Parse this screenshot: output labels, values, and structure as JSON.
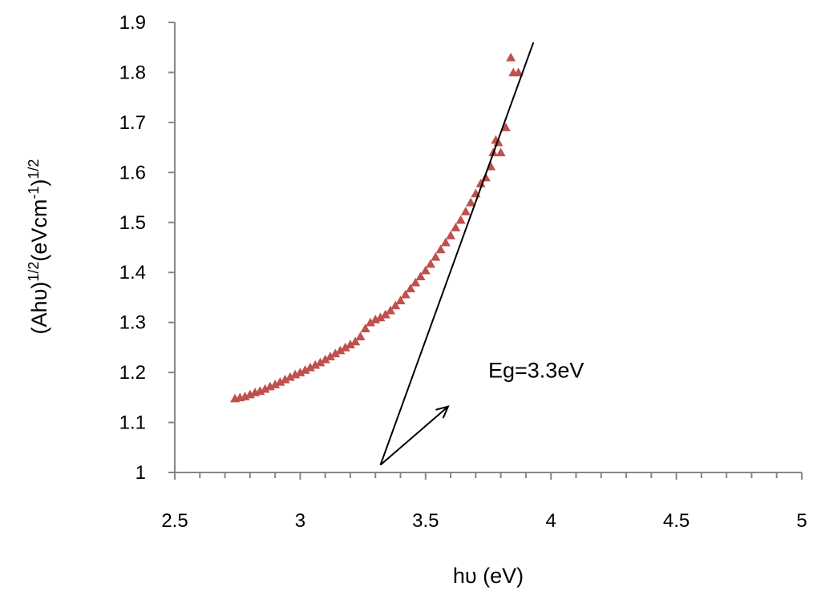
{
  "chart_data": {
    "type": "scatter",
    "title": "",
    "xlabel": "hυ (eV)",
    "ylabel_parts": {
      "base": "(Ahυ)",
      "sup1": "1/2",
      "mid": "(eVcm",
      "sup2": "-1",
      "close": ")",
      "sup3": "1/2"
    },
    "xlim": [
      2.5,
      5
    ],
    "ylim": [
      1,
      1.9
    ],
    "xticks": [
      "2.5",
      "3",
      "3.5",
      "4",
      "4.5",
      "5"
    ],
    "yticks": [
      "1",
      "1.1",
      "1.2",
      "1.3",
      "1.4",
      "1.5",
      "1.6",
      "1.7",
      "1.8",
      "1.9"
    ],
    "grid": false,
    "legend": "none",
    "marker": "triangle",
    "marker_color": "#c0504d",
    "series": [
      {
        "points": [
          [
            2.74,
            1.148
          ],
          [
            2.76,
            1.15
          ],
          [
            2.78,
            1.152
          ],
          [
            2.8,
            1.156
          ],
          [
            2.82,
            1.16
          ],
          [
            2.84,
            1.163
          ],
          [
            2.86,
            1.167
          ],
          [
            2.88,
            1.172
          ],
          [
            2.9,
            1.176
          ],
          [
            2.92,
            1.181
          ],
          [
            2.94,
            1.186
          ],
          [
            2.96,
            1.191
          ],
          [
            2.98,
            1.196
          ],
          [
            3.0,
            1.2
          ],
          [
            3.02,
            1.205
          ],
          [
            3.04,
            1.21
          ],
          [
            3.06,
            1.215
          ],
          [
            3.08,
            1.22
          ],
          [
            3.1,
            1.226
          ],
          [
            3.12,
            1.232
          ],
          [
            3.14,
            1.238
          ],
          [
            3.16,
            1.244
          ],
          [
            3.18,
            1.25
          ],
          [
            3.2,
            1.256
          ],
          [
            3.22,
            1.262
          ],
          [
            3.24,
            1.272
          ],
          [
            3.26,
            1.288
          ],
          [
            3.28,
            1.3
          ],
          [
            3.3,
            1.306
          ],
          [
            3.32,
            1.31
          ],
          [
            3.34,
            1.316
          ],
          [
            3.36,
            1.324
          ],
          [
            3.38,
            1.334
          ],
          [
            3.4,
            1.344
          ],
          [
            3.42,
            1.356
          ],
          [
            3.44,
            1.368
          ],
          [
            3.46,
            1.38
          ],
          [
            3.48,
            1.392
          ],
          [
            3.5,
            1.404
          ],
          [
            3.52,
            1.417
          ],
          [
            3.54,
            1.431
          ],
          [
            3.56,
            1.446
          ],
          [
            3.58,
            1.46
          ],
          [
            3.6,
            1.474
          ],
          [
            3.62,
            1.49
          ],
          [
            3.64,
            1.505
          ],
          [
            3.66,
            1.522
          ],
          [
            3.68,
            1.54
          ],
          [
            3.7,
            1.558
          ],
          [
            3.72,
            1.578
          ],
          [
            3.74,
            1.59
          ],
          [
            3.76,
            1.612
          ],
          [
            3.77,
            1.64
          ],
          [
            3.78,
            1.665
          ],
          [
            3.79,
            1.66
          ],
          [
            3.8,
            1.64
          ],
          [
            3.82,
            1.69
          ],
          [
            3.84,
            1.83
          ],
          [
            3.85,
            1.8
          ],
          [
            3.87,
            1.8
          ]
        ]
      }
    ],
    "fit_line": {
      "x": [
        3.32,
        3.93
      ],
      "y": [
        1.015,
        1.86
      ]
    },
    "arrow": {
      "from": [
        3.32,
        1.015
      ],
      "to": [
        3.59,
        1.132
      ]
    },
    "annotations": [
      {
        "text": "Eg=3.3eV",
        "x": 3.75,
        "y": 1.19
      }
    ]
  }
}
